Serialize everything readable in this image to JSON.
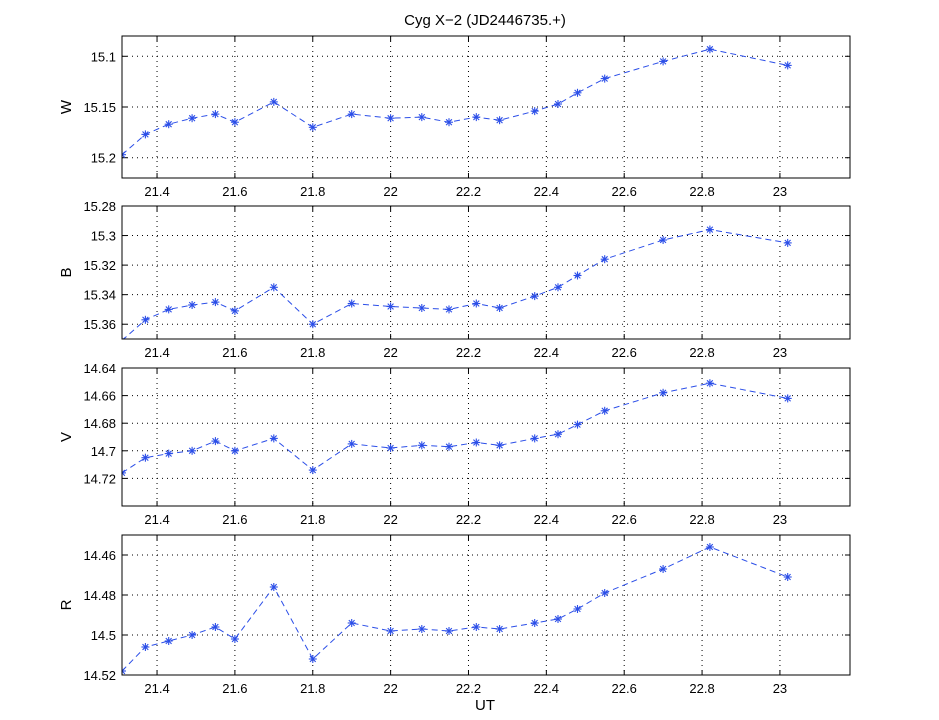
{
  "figure": {
    "title": "Cyg X−2 (JD2446735.+)",
    "xlabel": "UT"
  },
  "chart_data": [
    {
      "type": "line",
      "ylabel": "W",
      "xlim": [
        21.31,
        23.18
      ],
      "ylim": [
        15.08,
        15.22
      ],
      "y_reversed": true,
      "x_ticks": [
        "21.4",
        "21.6",
        "21.8",
        "22",
        "22.2",
        "22.4",
        "22.6",
        "22.8",
        "23"
      ],
      "y_ticks": [
        "15.1",
        "15.15",
        "15.2"
      ],
      "grid": true,
      "series": [
        {
          "color": "#2b4ee8",
          "line_style": "dashed",
          "marker": "asterisk",
          "x": [
            21.31,
            21.37,
            21.43,
            21.49,
            21.55,
            21.6,
            21.7,
            21.8,
            21.9,
            22.0,
            22.08,
            22.15,
            22.22,
            22.28,
            22.37,
            22.43,
            22.48,
            22.55,
            22.7,
            22.82,
            23.02
          ],
          "y": [
            15.197,
            15.177,
            15.167,
            15.161,
            15.157,
            15.165,
            15.145,
            15.17,
            15.157,
            15.161,
            15.16,
            15.165,
            15.16,
            15.163,
            15.154,
            15.147,
            15.136,
            15.122,
            15.105,
            15.093,
            15.109
          ]
        }
      ]
    },
    {
      "type": "line",
      "ylabel": "B",
      "xlim": [
        21.31,
        23.18
      ],
      "ylim": [
        15.28,
        15.37
      ],
      "y_reversed": true,
      "x_ticks": [
        "21.4",
        "21.6",
        "21.8",
        "22",
        "22.2",
        "22.4",
        "22.6",
        "22.8",
        "23"
      ],
      "y_ticks": [
        "15.28",
        "15.3",
        "15.32",
        "15.34",
        "15.36"
      ],
      "grid": true,
      "series": [
        {
          "color": "#2b4ee8",
          "line_style": "dashed",
          "marker": "asterisk",
          "x": [
            21.31,
            21.37,
            21.43,
            21.49,
            21.55,
            21.6,
            21.7,
            21.8,
            21.9,
            22.0,
            22.08,
            22.15,
            22.22,
            22.28,
            22.37,
            22.43,
            22.48,
            22.55,
            22.7,
            22.82,
            23.02
          ],
          "y": [
            15.371,
            15.357,
            15.35,
            15.347,
            15.345,
            15.351,
            15.335,
            15.36,
            15.346,
            15.348,
            15.349,
            15.35,
            15.346,
            15.349,
            15.341,
            15.335,
            15.327,
            15.316,
            15.303,
            15.296,
            15.305
          ]
        }
      ]
    },
    {
      "type": "line",
      "ylabel": "V",
      "xlim": [
        21.31,
        23.18
      ],
      "ylim": [
        14.64,
        14.74
      ],
      "y_reversed": true,
      "x_ticks": [
        "21.4",
        "21.6",
        "21.8",
        "22",
        "22.2",
        "22.4",
        "22.6",
        "22.8",
        "23"
      ],
      "y_ticks": [
        "14.64",
        "14.66",
        "14.68",
        "14.7",
        "14.72"
      ],
      "grid": true,
      "series": [
        {
          "color": "#2b4ee8",
          "line_style": "dashed",
          "marker": "asterisk",
          "x": [
            21.31,
            21.37,
            21.43,
            21.49,
            21.55,
            21.6,
            21.7,
            21.8,
            21.9,
            22.0,
            22.08,
            22.15,
            22.22,
            22.28,
            22.37,
            22.43,
            22.48,
            22.55,
            22.7,
            22.82,
            23.02
          ],
          "y": [
            14.716,
            14.705,
            14.702,
            14.7,
            14.693,
            14.7,
            14.691,
            14.714,
            14.695,
            14.698,
            14.696,
            14.697,
            14.694,
            14.696,
            14.691,
            14.688,
            14.681,
            14.671,
            14.658,
            14.651,
            14.662
          ]
        }
      ]
    },
    {
      "type": "line",
      "ylabel": "R",
      "xlim": [
        21.31,
        23.18
      ],
      "ylim": [
        14.45,
        14.52
      ],
      "y_reversed": true,
      "x_ticks": [
        "21.4",
        "21.6",
        "21.8",
        "22",
        "22.2",
        "22.4",
        "22.6",
        "22.8",
        "23"
      ],
      "y_ticks": [
        "14.46",
        "14.48",
        "14.5",
        "14.52"
      ],
      "grid": true,
      "series": [
        {
          "color": "#2b4ee8",
          "line_style": "dashed",
          "marker": "asterisk",
          "x": [
            21.31,
            21.37,
            21.43,
            21.49,
            21.55,
            21.6,
            21.7,
            21.8,
            21.9,
            22.0,
            22.08,
            22.15,
            22.22,
            22.28,
            22.37,
            22.43,
            22.48,
            22.55,
            22.7,
            22.82,
            23.02
          ],
          "y": [
            14.518,
            14.506,
            14.503,
            14.5,
            14.496,
            14.502,
            14.476,
            14.512,
            14.494,
            14.498,
            14.497,
            14.498,
            14.496,
            14.497,
            14.494,
            14.492,
            14.487,
            14.479,
            14.467,
            14.456,
            14.471
          ]
        }
      ]
    }
  ]
}
